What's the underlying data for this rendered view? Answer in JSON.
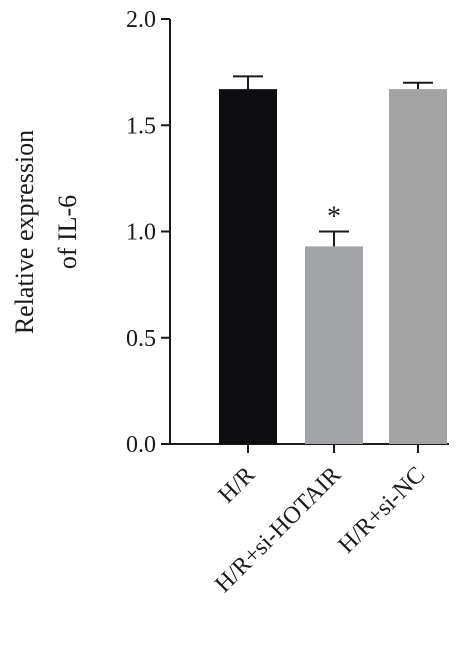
{
  "chart_data": {
    "type": "bar",
    "categories": [
      "H/R",
      "H/R+si-HOTAIR",
      "H/R+si-NC"
    ],
    "values": [
      1.67,
      0.93,
      1.67
    ],
    "errors": [
      0.06,
      0.07,
      0.03
    ],
    "colors": [
      "#0d0d0f",
      "#a3a4a8",
      "#a3a3a3"
    ],
    "ylabel_lines": [
      "Relative expression",
      "of IL-6"
    ],
    "ylim": [
      0,
      2.0
    ],
    "yticks": [
      "0.0",
      "0.5",
      "1.0",
      "1.5",
      "2.0"
    ],
    "annotations": [
      {
        "category": "H/R+si-HOTAIR",
        "text": "*"
      }
    ],
    "grid": false,
    "legend": "none"
  }
}
